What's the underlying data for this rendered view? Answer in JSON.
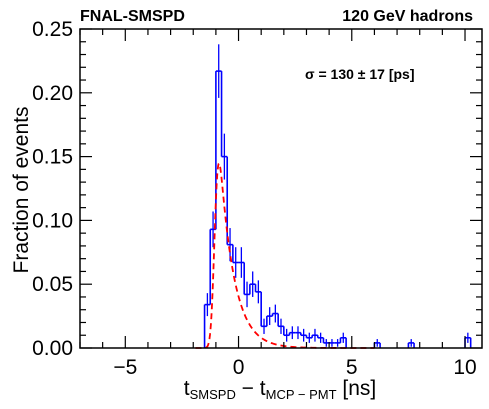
{
  "header": {
    "left_label": "FNAL-SMSPD",
    "right_label": "120 GeV hadrons"
  },
  "chart_data": {
    "type": "histogram",
    "ylabel": "Fraction of events",
    "xlabel": {
      "t1": "t",
      "s1": "SMSPD",
      "minus": " − t",
      "s2": "MCP − PMT",
      "unit": " [ns]"
    },
    "xlim": [
      -7.0,
      10.75
    ],
    "ylim": [
      0,
      0.25
    ],
    "x_major_ticks": [
      -5,
      0,
      5,
      10
    ],
    "x_tick_labels": [
      "−5",
      "0",
      "5",
      "10"
    ],
    "y_major_ticks": [
      0.0,
      0.05,
      0.1,
      0.15,
      0.2,
      0.25
    ],
    "y_tick_labels": [
      "0.00",
      "0.05",
      "0.10",
      "0.15",
      "0.20",
      "0.25"
    ],
    "grid": false,
    "annotation": {
      "symbol": "σ",
      "text": " = 130 ± 17 [ps]"
    },
    "histogram": {
      "name": "data",
      "color": "#0000ff",
      "bin_width": 0.25,
      "bins": [
        {
          "x": -1.5,
          "y": 0.034,
          "err": 0.009
        },
        {
          "x": -1.25,
          "y": 0.093,
          "err": 0.014
        },
        {
          "x": -1.0,
          "y": 0.217,
          "err": 0.021
        },
        {
          "x": -0.75,
          "y": 0.15,
          "err": 0.018
        },
        {
          "x": -0.5,
          "y": 0.081,
          "err": 0.013
        },
        {
          "x": -0.25,
          "y": 0.067,
          "err": 0.012
        },
        {
          "x": 0.0,
          "y": 0.067,
          "err": 0.012
        },
        {
          "x": 0.25,
          "y": 0.042,
          "err": 0.01
        },
        {
          "x": 0.5,
          "y": 0.05,
          "err": 0.01
        },
        {
          "x": 0.75,
          "y": 0.044,
          "err": 0.009
        },
        {
          "x": 1.0,
          "y": 0.017,
          "err": 0.006
        },
        {
          "x": 1.25,
          "y": 0.025,
          "err": 0.007
        },
        {
          "x": 1.5,
          "y": 0.027,
          "err": 0.007
        },
        {
          "x": 1.75,
          "y": 0.017,
          "err": 0.006
        },
        {
          "x": 2.0,
          "y": 0.01,
          "err": 0.005
        },
        {
          "x": 2.25,
          "y": 0.012,
          "err": 0.005
        },
        {
          "x": 2.5,
          "y": 0.012,
          "err": 0.005
        },
        {
          "x": 2.75,
          "y": 0.01,
          "err": 0.005
        },
        {
          "x": 3.0,
          "y": 0.008,
          "err": 0.004
        },
        {
          "x": 3.25,
          "y": 0.01,
          "err": 0.005
        },
        {
          "x": 3.5,
          "y": 0.008,
          "err": 0.004
        },
        {
          "x": 3.75,
          "y": 0.004,
          "err": 0.003
        },
        {
          "x": 4.0,
          "y": 0.004,
          "err": 0.003
        },
        {
          "x": 4.25,
          "y": 0.004,
          "err": 0.003
        },
        {
          "x": 4.5,
          "y": 0.008,
          "err": 0.004
        },
        {
          "x": 6.0,
          "y": 0.004,
          "err": 0.003
        },
        {
          "x": 7.5,
          "y": 0.004,
          "err": 0.003
        },
        {
          "x": 10.0,
          "y": 0.008,
          "err": 0.004
        }
      ]
    },
    "fit": {
      "name": "fit",
      "color": "#ff0000",
      "style": "dashed",
      "model": "exponentially modified gaussian",
      "params": {
        "amplitude": 0.1075,
        "mu": -1.05,
        "sigma": 0.13,
        "tau": 0.62
      }
    }
  }
}
